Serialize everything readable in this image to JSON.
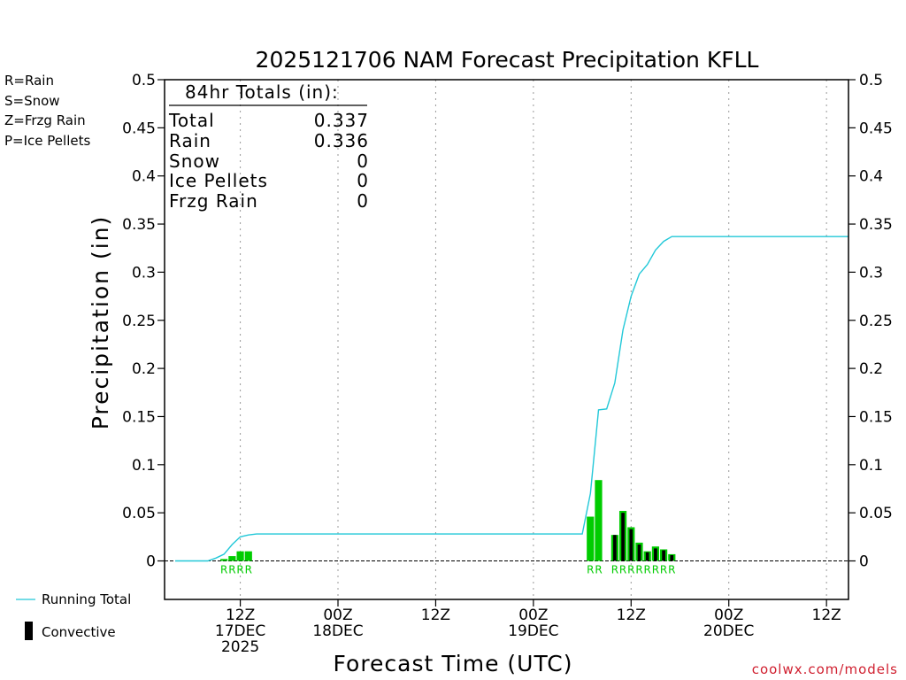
{
  "chart_data": {
    "type": "bar+line",
    "title": "2025121706 NAM Forecast Precipitation KFLL",
    "ylabel": "Precipitation (in)",
    "xlabel": "Forecast Time (UTC)",
    "ylim": [
      -0.04,
      0.5
    ],
    "y_ticks": [
      0,
      0.05,
      0.1,
      0.15,
      0.2,
      0.25,
      0.3,
      0.35,
      0.4,
      0.45,
      0.5
    ],
    "y_tick_labels": [
      "0",
      "0.05",
      "0.1",
      "0.15",
      "0.2",
      "0.25",
      "0.3",
      "0.35",
      "0.4",
      "0.45",
      "0.5"
    ],
    "xlim_hours": [
      -3.3,
      80.7
    ],
    "x_ticks": [
      {
        "hour": 6,
        "lines": [
          "12Z",
          "17DEC",
          "2025"
        ]
      },
      {
        "hour": 18,
        "lines": [
          "00Z",
          "18DEC"
        ]
      },
      {
        "hour": 30,
        "lines": [
          "12Z"
        ]
      },
      {
        "hour": 42,
        "lines": [
          "00Z",
          "19DEC"
        ]
      },
      {
        "hour": 54,
        "lines": [
          "12Z"
        ]
      },
      {
        "hour": 66,
        "lines": [
          "00Z",
          "20DEC"
        ]
      },
      {
        "hour": 78,
        "lines": [
          "12Z"
        ]
      }
    ],
    "legend": {
      "ptypes": [
        {
          "label": "R=Rain",
          "color": "#00cc00"
        },
        {
          "label": "S=Snow",
          "color": "#3a5ad8"
        },
        {
          "label": "Z=Frzg Rain",
          "color": "#f28c28"
        },
        {
          "label": "P=Ice Pellets",
          "color": "#e0208c"
        }
      ],
      "running_total": "Running Total",
      "convective": "Convective"
    },
    "totals": {
      "header": "84hr Totals (in):",
      "rows": [
        {
          "label": "Total",
          "value": "0.337"
        },
        {
          "label": "Rain",
          "value": "0.336"
        },
        {
          "label": "Snow",
          "value": "0"
        },
        {
          "label": "Ice Pellets",
          "value": "0"
        },
        {
          "label": "Frzg Rain",
          "value": "0"
        }
      ]
    },
    "bars": [
      {
        "hour": 4,
        "value": 0.002,
        "convective": 0,
        "ptype": "R"
      },
      {
        "hour": 5,
        "value": 0.005,
        "convective": 0,
        "ptype": "R"
      },
      {
        "hour": 6,
        "value": 0.01,
        "convective": 0,
        "ptype": "R"
      },
      {
        "hour": 7,
        "value": 0.01,
        "convective": 0,
        "ptype": "R"
      },
      {
        "hour": 49,
        "value": 0.046,
        "convective": 0,
        "ptype": "R"
      },
      {
        "hour": 50,
        "value": 0.084,
        "convective": 0,
        "ptype": "R"
      },
      {
        "hour": 52,
        "value": 0.027,
        "convective": 0.027,
        "ptype": "R"
      },
      {
        "hour": 53,
        "value": 0.052,
        "convective": 0.05,
        "ptype": "R"
      },
      {
        "hour": 54,
        "value": 0.035,
        "convective": 0.033,
        "ptype": "R"
      },
      {
        "hour": 55,
        "value": 0.019,
        "convective": 0.017,
        "ptype": "R"
      },
      {
        "hour": 56,
        "value": 0.01,
        "convective": 0.009,
        "ptype": "R"
      },
      {
        "hour": 57,
        "value": 0.015,
        "convective": 0.013,
        "ptype": "R"
      },
      {
        "hour": 58,
        "value": 0.012,
        "convective": 0.011,
        "ptype": "R"
      },
      {
        "hour": 59,
        "value": 0.007,
        "convective": 0.006,
        "ptype": "R"
      }
    ],
    "running_total": {
      "hours": [
        -2,
        0,
        2,
        3,
        4,
        5,
        6,
        7,
        8,
        9,
        48,
        49,
        50,
        51,
        52,
        53,
        54,
        55,
        56,
        57,
        58,
        59,
        80.7
      ],
      "values": [
        0,
        0,
        0,
        0.003,
        0.007,
        0.017,
        0.025,
        0.027,
        0.028,
        0.028,
        0.028,
        0.07,
        0.157,
        0.158,
        0.185,
        0.24,
        0.275,
        0.298,
        0.308,
        0.323,
        0.332,
        0.337,
        0.337
      ]
    },
    "colors": {
      "rain": "#00cc00",
      "running_total": "#22c8d8",
      "convective": "#000000",
      "grid": "#999999"
    }
  },
  "credit": "coolwx.com/models"
}
